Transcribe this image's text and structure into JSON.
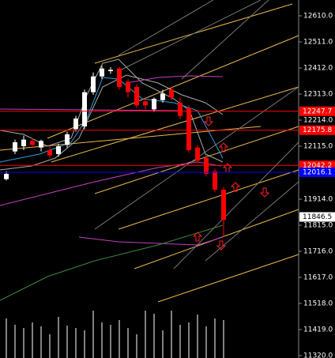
{
  "chart_data": {
    "type": "candlestick",
    "open": [
      11990,
      12095,
      12115,
      12135,
      12110,
      12100,
      12085,
      12120,
      12180,
      12190,
      12320,
      12380,
      12400,
      12410,
      12360,
      12340,
      12285,
      12255,
      12290,
      12330,
      12280,
      12260,
      12110,
      12070,
      12020,
      11950
    ],
    "high": [
      12020,
      12140,
      12155,
      12145,
      12140,
      12115,
      12125,
      12170,
      12230,
      12330,
      12395,
      12420,
      12415,
      12415,
      12370,
      12350,
      12300,
      12300,
      12330,
      12340,
      12300,
      12270,
      12120,
      12080,
      12030,
      11960
    ],
    "low": [
      11985,
      12085,
      12100,
      12110,
      12095,
      12070,
      12075,
      12110,
      12170,
      12180,
      12310,
      12370,
      12390,
      12330,
      12300,
      12260,
      12255,
      12245,
      12280,
      12290,
      12220,
      12090,
      12050,
      12000,
      11940,
      11770
    ],
    "close": [
      12010,
      12130,
      12140,
      12120,
      12135,
      12080,
      12115,
      12160,
      12220,
      12320,
      12380,
      12410,
      12405,
      12340,
      12320,
      12270,
      12270,
      12295,
      12315,
      12300,
      12230,
      12100,
      12060,
      12010,
      11950,
      11835
    ],
    "volume": [
      500,
      420,
      380,
      450,
      400,
      300,
      520,
      410,
      380,
      350,
      600,
      450,
      420,
      480,
      380,
      300,
      600,
      560,
      350,
      600,
      420,
      450,
      550,
      400,
      500,
      480
    ],
    "up_color": "#ffffff",
    "down_color": "#ff0000",
    "ylim": [
      11311,
      12670
    ],
    "yticks": [
      {
        "value": 12610,
        "label": "12610.0"
      },
      {
        "value": 12511,
        "label": "12511.0"
      },
      {
        "value": 12412,
        "label": "12412.0"
      },
      {
        "value": 12313,
        "label": "12313.0"
      },
      {
        "value": 12214,
        "label": "12214.0"
      },
      {
        "value": 12115,
        "label": "12115.0"
      },
      {
        "value": 11914,
        "label": "11914.0"
      },
      {
        "value": 11815,
        "label": "11815.0"
      },
      {
        "value": 11716,
        "label": "11716.0"
      },
      {
        "value": 11617,
        "label": "11617.0"
      },
      {
        "value": 11518,
        "label": "11518.0"
      },
      {
        "value": 11419,
        "label": "11419.0"
      },
      {
        "value": 11320,
        "label": "11320.0"
      }
    ],
    "price_labels": [
      {
        "value": 12247.7,
        "label": "12247.7",
        "color": "#ff0000"
      },
      {
        "value": 12175.8,
        "label": "12175.8",
        "color": "#ff0000"
      },
      {
        "value": 12042.2,
        "label": "12042.2",
        "color": "#ff0000"
      },
      {
        "value": 12016.1,
        "label": "12016.1",
        "color": "#0000ff"
      },
      {
        "value": 11846.5,
        "label": "11846.5",
        "color": "#ffffff"
      }
    ]
  }
}
